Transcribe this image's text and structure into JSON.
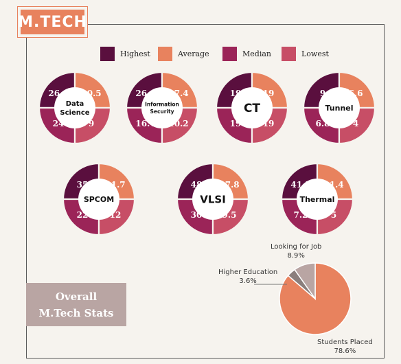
{
  "header": {
    "badge": "M.TECH"
  },
  "legend": [
    {
      "label": "Highest",
      "color": "#5a0f3e"
    },
    {
      "label": "Average",
      "color": "#e8825e"
    },
    {
      "label": "Median",
      "color": "#9b2458"
    },
    {
      "label": "Lowest",
      "color": "#c74e66"
    }
  ],
  "overall": {
    "line1": "Overall",
    "line2": "M.Tech Stats"
  },
  "chart_data": [
    {
      "type": "donut",
      "title": "Data Science",
      "title_lines": [
        "Data",
        "Science"
      ],
      "categories": [
        "Highest",
        "Average",
        "Median",
        "Lowest"
      ],
      "values": [
        26.1,
        20.5,
        24,
        9
      ]
    },
    {
      "type": "donut",
      "title": "Information Security",
      "title_lines": [
        "Information",
        "Security"
      ],
      "categories": [
        "Highest",
        "Average",
        "Median",
        "Lowest"
      ],
      "values": [
        26.1,
        17.4,
        16.7,
        10.2
      ]
    },
    {
      "type": "donut",
      "title": "CT",
      "title_lines": [
        "CT"
      ],
      "categories": [
        "Highest",
        "Average",
        "Median",
        "Lowest"
      ],
      "values": [
        19,
        19,
        19,
        19
      ]
    },
    {
      "type": "donut",
      "title": "Tunnel",
      "title_lines": [
        "Tunnel"
      ],
      "categories": [
        "Highest",
        "Average",
        "Median",
        "Lowest"
      ],
      "values": [
        9,
        6.6,
        6.8,
        4
      ]
    },
    {
      "type": "donut",
      "title": "SPCOM",
      "title_lines": [
        "SPCOM"
      ],
      "categories": [
        "Highest",
        "Average",
        "Median",
        "Lowest"
      ],
      "values": [
        35,
        21.7,
        22,
        12
      ]
    },
    {
      "type": "donut",
      "title": "VLSI",
      "title_lines": [
        "VLSI"
      ],
      "categories": [
        "Highest",
        "Average",
        "Median",
        "Lowest"
      ],
      "values": [
        48,
        27.8,
        30,
        9.5
      ]
    },
    {
      "type": "donut",
      "title": "Thermal",
      "title_lines": [
        "Thermal"
      ],
      "categories": [
        "Highest",
        "Average",
        "Median",
        "Lowest"
      ],
      "values": [
        41.5,
        11.4,
        7.2,
        5
      ]
    },
    {
      "type": "pie",
      "categories": [
        "Students Placed",
        "Higher Education",
        "Looking for Job"
      ],
      "values": [
        78.6,
        3.6,
        8.9
      ],
      "labels": [
        {
          "name": "Students Placed",
          "pct": "78.6%"
        },
        {
          "name": "Higher Education",
          "pct": "3.6%"
        },
        {
          "name": "Looking for Job",
          "pct": "8.9%"
        }
      ],
      "colors": [
        "#e8825e",
        "#8a7e7c",
        "#b9a5a3"
      ]
    }
  ]
}
